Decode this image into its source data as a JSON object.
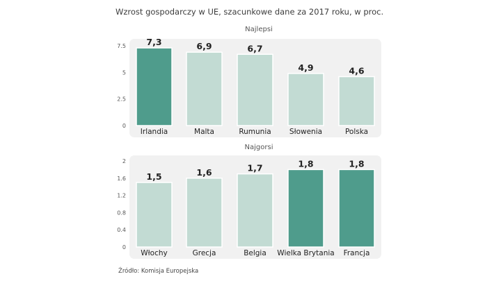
{
  "title": "Wzrost gospodarczy w UE, szacunkowe dane za 2017 roku, w proc.",
  "source": "Źródło: Komisja Europejska",
  "colors": {
    "highlight": "#4f9c8c",
    "normal": "#c2dbd3",
    "panel_bg": "#f1f1f1",
    "bar_outline": "#ffffff"
  },
  "chart_data": [
    {
      "type": "bar",
      "title": "Najlepsi",
      "categories": [
        "Irlandia",
        "Malta",
        "Rumunia",
        "Słowenia",
        "Polska"
      ],
      "values": [
        7.3,
        6.9,
        6.7,
        4.9,
        4.6
      ],
      "value_labels": [
        "7,3",
        "6,9",
        "6,7",
        "4,9",
        "4,6"
      ],
      "highlighted": [
        true,
        false,
        false,
        false,
        false
      ],
      "yticks": [
        0,
        2.5,
        5,
        7.5
      ],
      "ytick_labels": [
        "0",
        "2.5",
        "5",
        "7.5"
      ],
      "ylim": [
        0,
        7.5
      ],
      "grid": false
    },
    {
      "type": "bar",
      "title": "Najgorsi",
      "categories": [
        "Włochy",
        "Grecja",
        "Belgia",
        "Wielka Brytania",
        "Francja"
      ],
      "values": [
        1.5,
        1.6,
        1.7,
        1.8,
        1.8
      ],
      "value_labels": [
        "1,5",
        "1,6",
        "1,7",
        "1,8",
        "1,8"
      ],
      "highlighted": [
        false,
        false,
        false,
        true,
        true
      ],
      "yticks": [
        0,
        0.4,
        0.8,
        1.2,
        1.6,
        2
      ],
      "ytick_labels": [
        "0",
        "0.4",
        "0.8",
        "1.2",
        "1.6",
        "2"
      ],
      "ylim": [
        0,
        2
      ],
      "grid": false
    }
  ]
}
